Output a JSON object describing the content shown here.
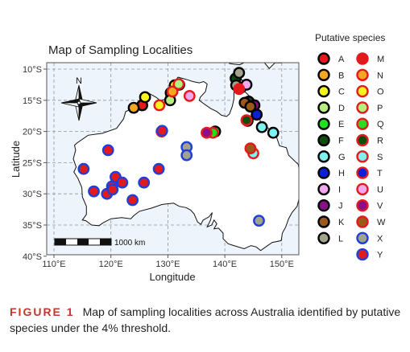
{
  "chart_data": {
    "type": "scatter",
    "title": "Map of Sampling Localities",
    "xlabel": "Longitude",
    "ylabel": "Latitude",
    "xlim": [
      110,
      155
    ],
    "ylim": [
      -40,
      -9
    ],
    "x_ticks": [
      {
        "value": 110,
        "label": "110°E"
      },
      {
        "value": 120,
        "label": "120°E"
      },
      {
        "value": 130,
        "label": "130°E"
      },
      {
        "value": 140,
        "label": "140°E"
      },
      {
        "value": 150,
        "label": "150°E"
      }
    ],
    "y_ticks": [
      {
        "value": -10,
        "label": "10°S"
      },
      {
        "value": -15,
        "label": "15°S"
      },
      {
        "value": -20,
        "label": "20°S"
      },
      {
        "value": -25,
        "label": "25°S"
      },
      {
        "value": -30,
        "label": "30°S"
      },
      {
        "value": -35,
        "label": "35°S"
      },
      {
        "value": -40,
        "label": "40°S"
      }
    ],
    "grid": "dashed",
    "north_arrow_label": "N",
    "scale_bar_label": "1000 km",
    "legend_title": "Putative species",
    "legend_placement": "right",
    "series": [
      {
        "name": "A",
        "fill": "#e31a1c",
        "border": "#000000",
        "points": [
          [
            125.5,
            -15.8
          ],
          [
            142.8,
            -13.0
          ],
          [
            144.0,
            -18.3
          ]
        ]
      },
      {
        "name": "B",
        "fill": "#f5a623",
        "border": "#000000",
        "points": [
          [
            124.0,
            -16.2
          ],
          [
            130.5,
            -13.8
          ]
        ]
      },
      {
        "name": "C",
        "fill": "#f7f31b",
        "border": "#000000",
        "points": [
          [
            126.0,
            -14.5
          ],
          [
            131.2,
            -12.6
          ]
        ]
      },
      {
        "name": "D",
        "fill": "#b6ef7e",
        "border": "#000000",
        "points": [
          [
            130.4,
            -15.0
          ],
          [
            132.0,
            -12.5
          ]
        ]
      },
      {
        "name": "E",
        "fill": "#21e021",
        "border": "#000000",
        "points": [
          [
            138.3,
            -20.0
          ]
        ]
      },
      {
        "name": "F",
        "fill": "#0f4d0f",
        "border": "#000000",
        "points": [
          [
            141.9,
            -11.5
          ],
          [
            144.2,
            -15.2
          ]
        ]
      },
      {
        "name": "G",
        "fill": "#7df3ef",
        "border": "#000000",
        "points": [
          [
            146.5,
            -19.3
          ],
          [
            148.5,
            -20.2
          ]
        ]
      },
      {
        "name": "H",
        "fill": "#0a1fd8",
        "border": "#000000",
        "points": [
          [
            145.6,
            -17.3
          ]
        ]
      },
      {
        "name": "I",
        "fill": "#f4a6f0",
        "border": "#000000",
        "points": [
          [
            143.8,
            -12.5
          ]
        ]
      },
      {
        "name": "J",
        "fill": "#8b0f8b",
        "border": "#000000",
        "points": [
          [
            145.2,
            -15.8
          ]
        ]
      },
      {
        "name": "K",
        "fill": "#9b5a1a",
        "border": "#000000",
        "points": [
          [
            143.5,
            -15.4
          ],
          [
            144.5,
            -16.0
          ]
        ]
      },
      {
        "name": "L",
        "fill": "#a3a38d",
        "border": "#000000",
        "points": [
          [
            142.0,
            -12.6
          ],
          [
            142.5,
            -10.6
          ]
        ]
      },
      {
        "name": "M",
        "fill": "#e31a1c",
        "border": "#e31a1c",
        "points": [
          [
            142.5,
            -13.2
          ]
        ]
      },
      {
        "name": "N",
        "fill": "#f5a623",
        "border": "#e31a1c",
        "points": [
          [
            130.8,
            -13.6
          ]
        ]
      },
      {
        "name": "O",
        "fill": "#f7f31b",
        "border": "#e31a1c",
        "points": [
          [
            128.5,
            -15.8
          ]
        ]
      },
      {
        "name": "P",
        "fill": "#b6ef7e",
        "border": "#e31a1c",
        "points": [
          [
            131.9,
            -12.4
          ]
        ]
      },
      {
        "name": "Q",
        "fill": "#21e021",
        "border": "#e31a1c",
        "points": [
          [
            137.9,
            -20.2
          ]
        ]
      },
      {
        "name": "R",
        "fill": "#0f4d0f",
        "border": "#e31a1c",
        "points": [
          [
            143.8,
            -18.2
          ]
        ]
      },
      {
        "name": "S",
        "fill": "#7df3ef",
        "border": "#e31a1c",
        "points": [
          [
            145.0,
            -23.5
          ]
        ]
      },
      {
        "name": "T",
        "fill": "#0a1fd8",
        "border": "#e31a1c",
        "points": [
          [
            128.9,
            -20.0
          ]
        ]
      },
      {
        "name": "U",
        "fill": "#f4a6f0",
        "border": "#e31a1c",
        "points": [
          [
            133.8,
            -14.3
          ]
        ]
      },
      {
        "name": "V",
        "fill": "#8b0f8b",
        "border": "#e31a1c",
        "points": [
          [
            136.8,
            -20.2
          ]
        ]
      },
      {
        "name": "W",
        "fill": "#9b5a1a",
        "border": "#e31a1c",
        "points": [
          [
            144.5,
            -22.7
          ]
        ]
      },
      {
        "name": "X",
        "fill": "#a3a38d",
        "border": "#1f3fd8",
        "points": [
          [
            133.3,
            -22.5
          ],
          [
            133.3,
            -23.8
          ],
          [
            146.0,
            -34.3
          ]
        ]
      },
      {
        "name": "Y",
        "fill": "#e31a1c",
        "border": "#1f3fd8",
        "points": [
          [
            115.2,
            -26.0
          ],
          [
            117.0,
            -29.6
          ],
          [
            119.3,
            -30.0
          ],
          [
            119.5,
            -23.0
          ],
          [
            120.2,
            -28.8
          ],
          [
            120.8,
            -27.3
          ],
          [
            120.3,
            -29.3
          ],
          [
            122.0,
            -28.2
          ],
          [
            123.8,
            -31.0
          ],
          [
            125.8,
            -28.2
          ],
          [
            128.4,
            -26.0
          ],
          [
            129.0,
            -19.9
          ]
        ]
      }
    ]
  },
  "caption": {
    "label": "FIGURE 1",
    "text": "Map of sampling localities across Australia identified by putative species under the 4% threshold."
  }
}
